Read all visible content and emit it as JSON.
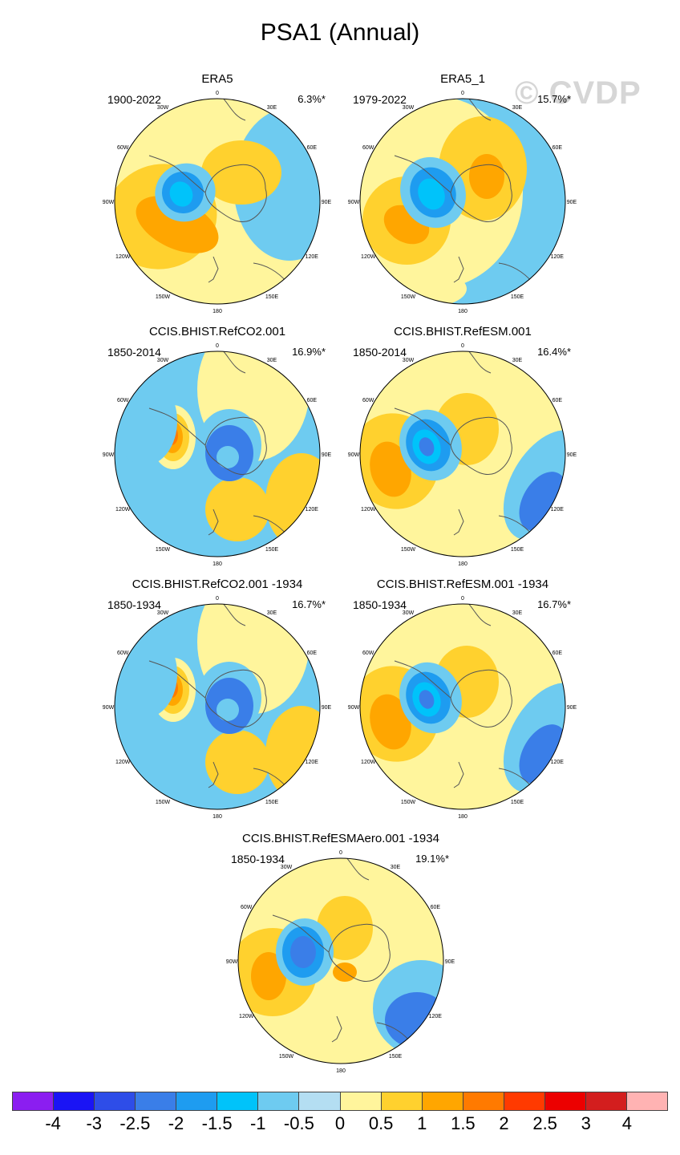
{
  "figure": {
    "title": "PSA1 (Annual)",
    "watermark": "© CVDP"
  },
  "map_labels": {
    "top": "0",
    "bottom": "180",
    "left_90": "90W",
    "right_90": "90E",
    "upper_left_30": "30W",
    "upper_right_30": "30E",
    "upper_left_60": "60W",
    "upper_right_60": "60E",
    "lower_left_120": "120W",
    "lower_right_120": "120E",
    "lower_left_150": "150W",
    "lower_right_150": "150E"
  },
  "panels": [
    {
      "title": "ERA5",
      "period": "1900-2022",
      "percent": "6.3%*",
      "pattern": "era5"
    },
    {
      "title": "ERA5_1",
      "period": "1979-2022",
      "percent": "15.7%*",
      "pattern": "era5_1"
    },
    {
      "title": "CCIS.BHIST.RefCO2.001",
      "period": "1850-2014",
      "percent": "16.9%*",
      "pattern": "co2"
    },
    {
      "title": "CCIS.BHIST.RefESM.001",
      "period": "1850-2014",
      "percent": "16.4%*",
      "pattern": "esm"
    },
    {
      "title": "CCIS.BHIST.RefCO2.001 -1934",
      "period": "1850-1934",
      "percent": "16.7%*",
      "pattern": "co2"
    },
    {
      "title": "CCIS.BHIST.RefESM.001 -1934",
      "period": "1850-1934",
      "percent": "16.7%*",
      "pattern": "esm"
    },
    {
      "title": "CCIS.BHIST.RefESMAero.001 -1934",
      "period": "1850-1934",
      "percent": "19.1%*",
      "pattern": "aero"
    }
  ],
  "colorbar": {
    "levels": [
      "-4",
      "-3",
      "-2.5",
      "-2",
      "-1.5",
      "-1",
      "-0.5",
      "0",
      "0.5",
      "1",
      "1.5",
      "2",
      "2.5",
      "3",
      "4"
    ],
    "colors": [
      "#8b1ef0",
      "#1a14f5",
      "#2e4de8",
      "#3a7ee8",
      "#1e9cf0",
      "#00c3fa",
      "#6ecbf0",
      "#b4def2",
      "#fff59c",
      "#ffd12e",
      "#ffa600",
      "#ff7a00",
      "#ff3a00",
      "#ec0000",
      "#d31e1e",
      "#ffb3b3"
    ]
  }
}
